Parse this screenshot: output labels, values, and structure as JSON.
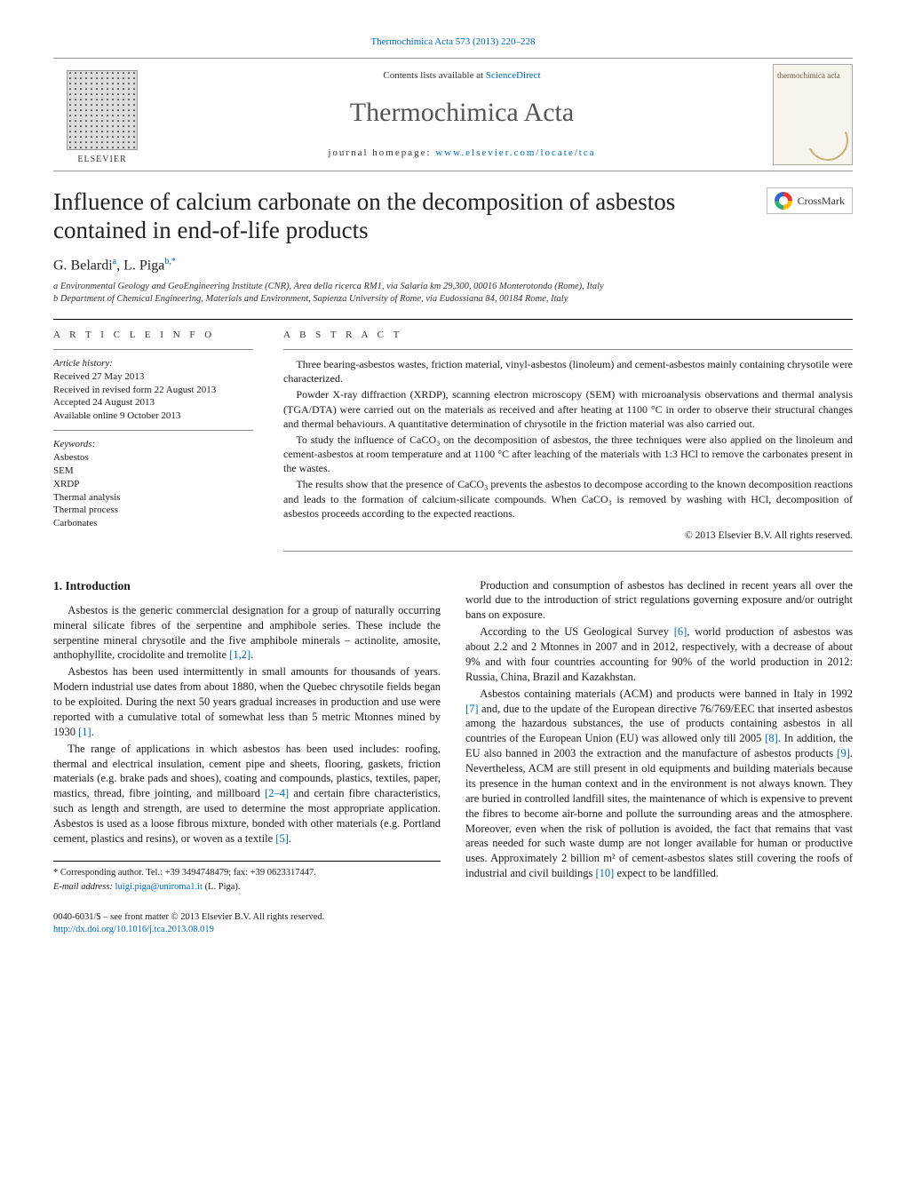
{
  "journal": {
    "citation": "Thermochimica Acta 573 (2013) 220–228",
    "contents_label": "Contents lists available at",
    "contents_link_text": "ScienceDirect",
    "name": "Thermochimica Acta",
    "homepage_label": "journal homepage:",
    "homepage_url": "www.elsevier.com/locate/tca",
    "publisher_name": "ELSEVIER",
    "cover_text": "thermochimica acta"
  },
  "crossmark": {
    "label": "CrossMark"
  },
  "article": {
    "title": "Influence of calcium carbonate on the decomposition of asbestos contained in end-of-life products",
    "authors_html": "G. Belardi<sup>a</sup>, L. Piga<sup>b,*</sup>",
    "affiliations": [
      "a Environmental Geology and GeoEngineering Institute (CNR), Area della ricerca RM1, via Salaria km 29,300, 00016 Monterotondo (Rome), Italy",
      "b Department of Chemical Engineering, Materials and Environment, Sapienza University of Rome, via Eudossiana 84, 00184 Rome, Italy"
    ]
  },
  "info": {
    "section_label": "A R T I C L E   I N F O",
    "history_label": "Article history:",
    "history": [
      "Received 27 May 2013",
      "Received in revised form 22 August 2013",
      "Accepted 24 August 2013",
      "Available online 9 October 2013"
    ],
    "keywords_label": "Keywords:",
    "keywords": [
      "Asbestos",
      "SEM",
      "XRDP",
      "Thermal analysis",
      "Thermal process",
      "Carbonates"
    ]
  },
  "abstract": {
    "section_label": "A B S T R A C T",
    "paragraphs": [
      "Three bearing-asbestos wastes, friction material, vinyl-asbestos (linoleum) and cement-asbestos mainly containing chrysotile were characterized.",
      "Powder X-ray diffraction (XRDP), scanning electron microscopy (SEM) with microanalysis observations and thermal analysis (TGA/DTA) were carried out on the materials as received and after heating at 1100 °C in order to observe their structural changes and thermal behaviours. A quantitative determination of chrysotile in the friction material was also carried out.",
      "To study the influence of CaCO₃ on the decomposition of asbestos, the three techniques were also applied on the linoleum and cement-asbestos at room temperature and at 1100 °C after leaching of the materials with 1:3 HCl to remove the carbonates present in the wastes.",
      "The results show that the presence of CaCO₃ prevents the asbestos to decompose according to the known decomposition reactions and leads to the formation of calcium-silicate compounds. When CaCO₃ is removed by washing with HCl, decomposition of asbestos proceeds according to the expected reactions."
    ],
    "copyright": "© 2013 Elsevier B.V. All rights reserved."
  },
  "body": {
    "heading": "1.  Introduction",
    "paragraphs": [
      "Asbestos is the generic commercial designation for a group of naturally occurring mineral silicate fibres of the serpentine and amphibole series. These include the serpentine mineral chrysotile and the five amphibole minerals – actinolite, amosite, anthophyllite, crocidolite and tremolite <a class='ref' data-name='citation-link' data-interactable='true'>[1,2]</a>.",
      "Asbestos has been used intermittently in small amounts for thousands of years. Modern industrial use dates from about 1880, when the Quebec chrysotile fields began to be exploited. During the next 50 years gradual increases in production and use were reported with a cumulative total of somewhat less than 5 metric Mtonnes mined by 1930 <a class='ref' data-name='citation-link' data-interactable='true'>[1]</a>.",
      "The range of applications in which asbestos has been used includes: roofing, thermal and electrical insulation, cement pipe and sheets, flooring, gaskets, friction materials (e.g. brake pads and shoes), coating and compounds, plastics, textiles, paper, mastics, thread, fibre jointing, and millboard <a class='ref' data-name='citation-link' data-interactable='true'>[2–4]</a> and certain fibre characteristics, such as length and strength, are used to determine the most appropriate application. Asbestos is used as a loose fibrous mixture, bonded with other materials (e.g. Portland cement, plastics and resins), or woven as a textile <a class='ref' data-name='citation-link' data-interactable='true'>[5]</a>.",
      "Production and consumption of asbestos has declined in recent years all over the world due to the introduction of strict regulations governing exposure and/or outright bans on exposure.",
      "According to the US Geological Survey <a class='ref' data-name='citation-link' data-interactable='true'>[6]</a>, world production of asbestos was about 2.2 and 2 Mtonnes in 2007 and in 2012, respectively, with a decrease of about 9% and with four countries accounting for 90% of the world production in 2012: Russia, China, Brazil and Kazakhstan.",
      "Asbestos containing materials (ACM) and products were banned in Italy in 1992 <a class='ref' data-name='citation-link' data-interactable='true'>[7]</a> and, due to the update of the European directive 76/769/EEC that inserted asbestos among the hazardous substances, the use of products containing asbestos in all countries of the European Union (EU) was allowed only till 2005 <a class='ref' data-name='citation-link' data-interactable='true'>[8]</a>. In addition, the EU also banned in 2003 the extraction and the manufacture of asbestos products <a class='ref' data-name='citation-link' data-interactable='true'>[9]</a>. Nevertheless, ACM are still present in old equipments and building materials because its presence in the human context and in the environment is not always known. They are buried in controlled landfill sites, the maintenance of which is expensive to prevent the fibres to become air-borne and pollute the surrounding areas and the atmosphere. Moreover, even when the risk of pollution is avoided, the fact that remains that vast areas needed for such waste dump are not longer available for human or productive uses. Approximately 2 billion m² of cement-asbestos slates still covering the roofs of industrial and civil buildings <a class='ref' data-name='citation-link' data-interactable='true'>[10]</a> expect to be landfilled."
    ]
  },
  "footnote": {
    "corresponding": "* Corresponding author. Tel.: +39 3494748479; fax: +39 0623317447.",
    "email_label": "E-mail address:",
    "email": "luigi.piga@uniroma1.it",
    "email_suffix": "(L. Piga)."
  },
  "footer": {
    "issn_line": "0040-6031/$ – see front matter © 2013 Elsevier B.V. All rights reserved.",
    "doi": "http://dx.doi.org/10.1016/j.tca.2013.08.019"
  },
  "colors": {
    "link": "#0066b3",
    "text": "#1a1a1a",
    "rule": "#000000",
    "background": "#ffffff"
  }
}
